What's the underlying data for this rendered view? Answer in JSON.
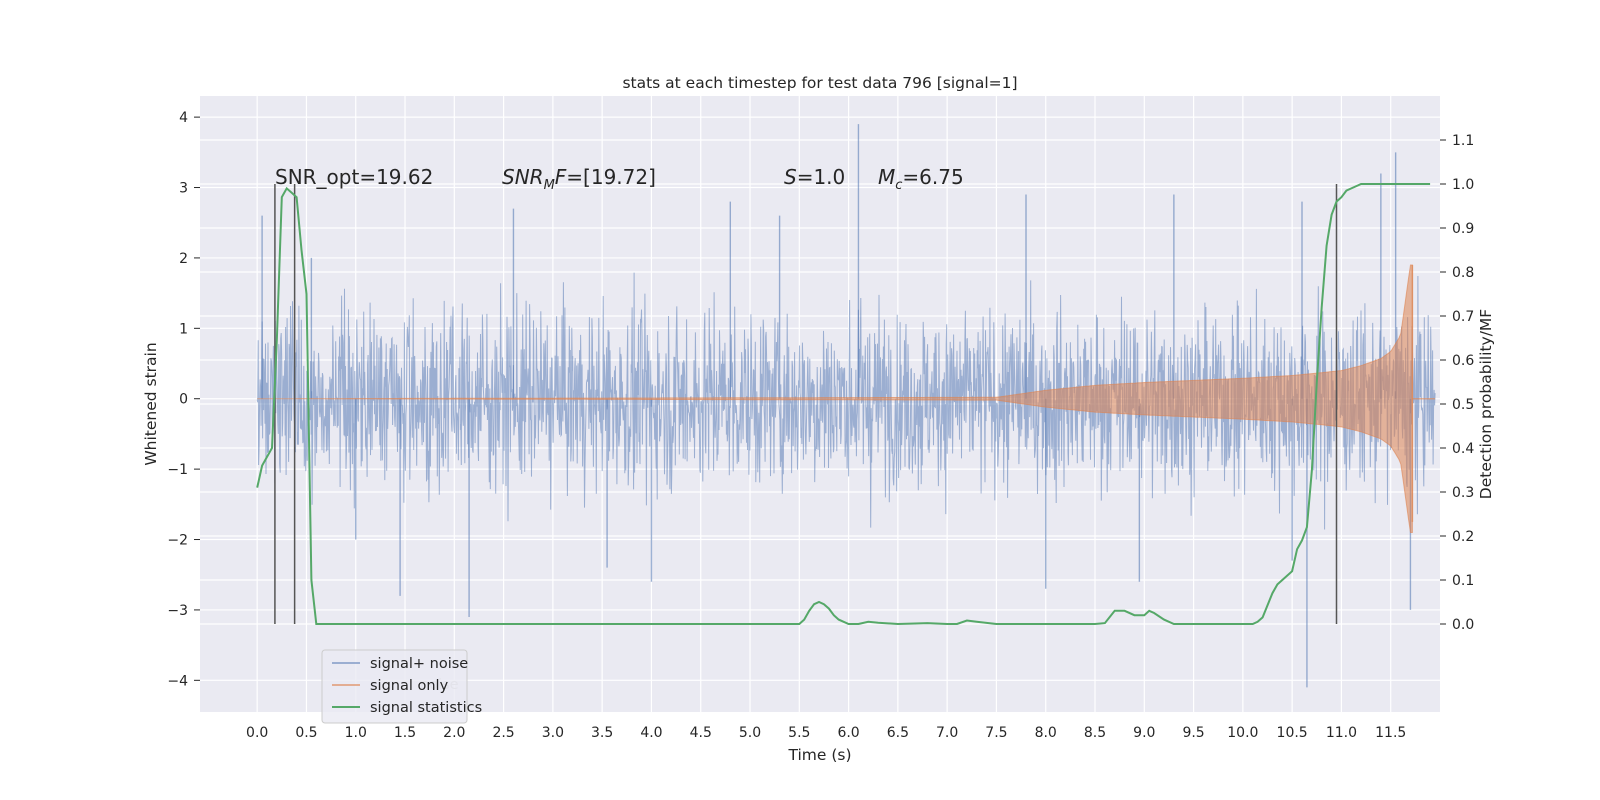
{
  "chart_data": {
    "type": "line",
    "title": "stats at each timestep for test data 796 [signal=1]",
    "xlabel": "Time (s)",
    "ylabel": "Whitened strain",
    "ylabel_right": "Detection probability/MF",
    "xlim": [
      -0.58,
      12.0
    ],
    "ylim": [
      -4.45,
      4.3
    ],
    "ylim_right": [
      -0.2,
      1.2
    ],
    "x_ticks": [
      "0.0",
      "0.5",
      "1.0",
      "1.5",
      "2.0",
      "2.5",
      "3.0",
      "3.5",
      "4.0",
      "4.5",
      "5.0",
      "5.5",
      "6.0",
      "6.5",
      "7.0",
      "7.5",
      "8.0",
      "8.5",
      "9.0",
      "9.5",
      "10.0",
      "10.5",
      "11.0",
      "11.5"
    ],
    "y_ticks": [
      "4",
      "3",
      "2",
      "1",
      "0",
      "−1",
      "−2",
      "−3",
      "−4"
    ],
    "y_ticks_right": [
      "1.1",
      "1.0",
      "0.9",
      "0.8",
      "0.7",
      "0.6",
      "0.5",
      "0.4",
      "0.3",
      "0.2",
      "0.1",
      "0.0"
    ],
    "grid": true,
    "legend_position": "lower-left",
    "legend_overlap_text": "noise",
    "annotations": {
      "snr_opt": "SNR_opt=19.62",
      "snr_mf": "SNR_MF=[19.72]",
      "s": "S=1.0",
      "mc": "M_c=6.75"
    },
    "vertical_lines_s": [
      0.18,
      0.38,
      10.95
    ],
    "vertical_lines_range": [
      -3.2,
      3.05
    ],
    "series": [
      {
        "name": "signal+ noise",
        "color": "#4c72b0",
        "duration_s": 11.95,
        "envelope_std": 0.62,
        "peak_values": [
          {
            "x": 0.05,
            "y": 2.6
          },
          {
            "x": 0.55,
            "y": 2.0
          },
          {
            "x": 1.0,
            "y": -2.0
          },
          {
            "x": 1.45,
            "y": -2.8
          },
          {
            "x": 2.15,
            "y": -3.1
          },
          {
            "x": 2.6,
            "y": 2.7
          },
          {
            "x": 3.55,
            "y": -2.4
          },
          {
            "x": 4.0,
            "y": -2.6
          },
          {
            "x": 4.8,
            "y": 2.8
          },
          {
            "x": 5.3,
            "y": 2.6
          },
          {
            "x": 6.1,
            "y": 3.9
          },
          {
            "x": 7.8,
            "y": 2.9
          },
          {
            "x": 8.0,
            "y": -2.7
          },
          {
            "x": 8.95,
            "y": -2.6
          },
          {
            "x": 9.3,
            "y": 2.9
          },
          {
            "x": 10.5,
            "y": -2.3
          },
          {
            "x": 10.6,
            "y": 2.8
          },
          {
            "x": 10.65,
            "y": -4.1
          },
          {
            "x": 11.4,
            "y": 3.2
          },
          {
            "x": 11.55,
            "y": 3.5
          },
          {
            "x": 11.7,
            "y": -3.0
          }
        ]
      },
      {
        "name": "signal only",
        "color": "#dd8452",
        "x": [
          0.0,
          7.5,
          8.0,
          8.5,
          9.0,
          9.5,
          10.0,
          10.5,
          10.8,
          11.0,
          11.2,
          11.4,
          11.5,
          11.6,
          11.65,
          11.7
        ],
        "amplitude": [
          0.0,
          0.02,
          0.12,
          0.19,
          0.23,
          0.26,
          0.29,
          0.33,
          0.37,
          0.4,
          0.47,
          0.57,
          0.67,
          0.9,
          1.4,
          1.9
        ],
        "end_x": 11.72
      },
      {
        "name": "signal statistics",
        "color": "#55a868",
        "axis": "right",
        "x": [
          0.0,
          0.05,
          0.15,
          0.2,
          0.25,
          0.3,
          0.35,
          0.4,
          0.45,
          0.5,
          0.55,
          0.6,
          0.65,
          5.5,
          5.55,
          5.6,
          5.65,
          5.7,
          5.75,
          5.8,
          5.85,
          5.9,
          6.0,
          6.1,
          6.2,
          6.3,
          6.5,
          6.8,
          7.0,
          7.1,
          7.2,
          7.3,
          7.5,
          8.5,
          8.6,
          8.7,
          8.8,
          8.9,
          9.0,
          9.05,
          9.1,
          9.2,
          9.3,
          10.0,
          10.1,
          10.15,
          10.2,
          10.3,
          10.35,
          10.4,
          10.5,
          10.55,
          10.6,
          10.65,
          10.7,
          10.75,
          10.8,
          10.85,
          10.9,
          10.95,
          11.0,
          11.05,
          11.1,
          11.2,
          11.3,
          11.5,
          11.7,
          11.9
        ],
        "y": [
          0.31,
          0.36,
          0.4,
          0.65,
          0.97,
          0.99,
          0.98,
          0.97,
          0.85,
          0.75,
          0.1,
          0.0,
          0.0,
          0.0,
          0.01,
          0.03,
          0.045,
          0.05,
          0.045,
          0.035,
          0.02,
          0.01,
          0.0,
          0.0,
          0.005,
          0.003,
          0.0,
          0.002,
          0.0,
          0.0,
          0.008,
          0.005,
          0.0,
          0.0,
          0.002,
          0.03,
          0.03,
          0.02,
          0.02,
          0.03,
          0.025,
          0.01,
          0.0,
          0.0,
          0.0,
          0.005,
          0.015,
          0.07,
          0.09,
          0.1,
          0.12,
          0.17,
          0.19,
          0.22,
          0.35,
          0.55,
          0.72,
          0.86,
          0.93,
          0.96,
          0.97,
          0.985,
          0.99,
          1.0,
          1.0,
          1.0,
          1.0,
          1.0
        ]
      }
    ]
  }
}
